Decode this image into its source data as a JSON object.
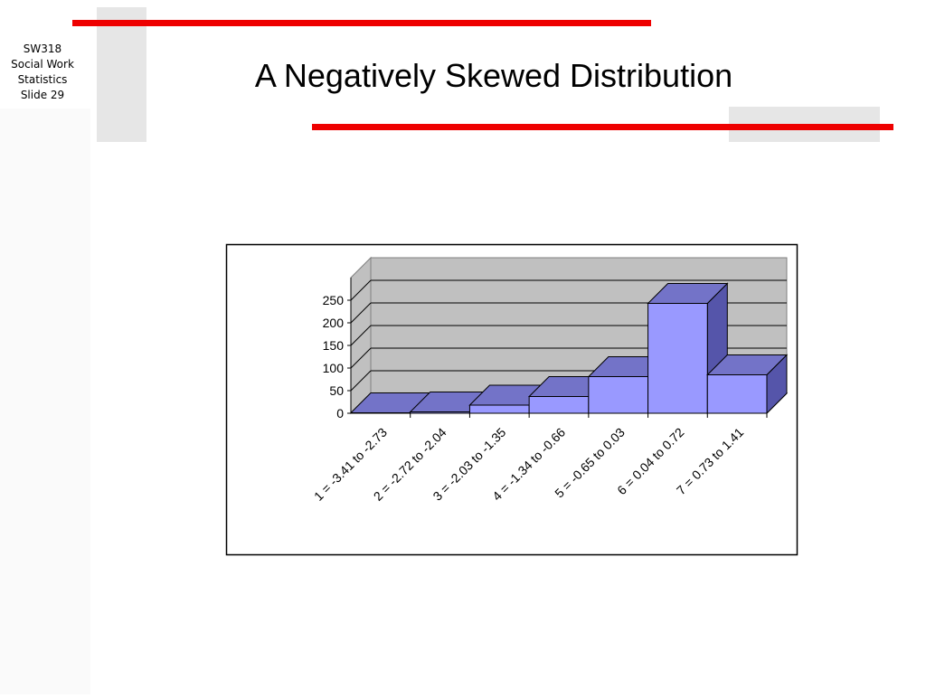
{
  "slide": {
    "sidebar": [
      "SW318",
      "Social Work",
      "Statistics",
      "Slide 29"
    ],
    "title": "A Negatively Skewed Distribution"
  },
  "chart_data": {
    "type": "bar3d",
    "categories": [
      "1 = -3.41 to -2.73",
      "2 = -2.72 to -2.04",
      "3 = -2.03 to -1.35",
      "4 = -1.34 to -0.66",
      "5 = -0.65 to 0.03",
      "6 = 0.04 to 0.72",
      "7 = 0.73 to 1.41"
    ],
    "values": [
      1,
      3,
      18,
      37,
      81,
      243,
      85
    ],
    "color": "#9999ff",
    "ylim": [
      0,
      300
    ],
    "yticks": [
      0,
      50,
      100,
      150,
      200,
      250
    ],
    "grid": true
  }
}
